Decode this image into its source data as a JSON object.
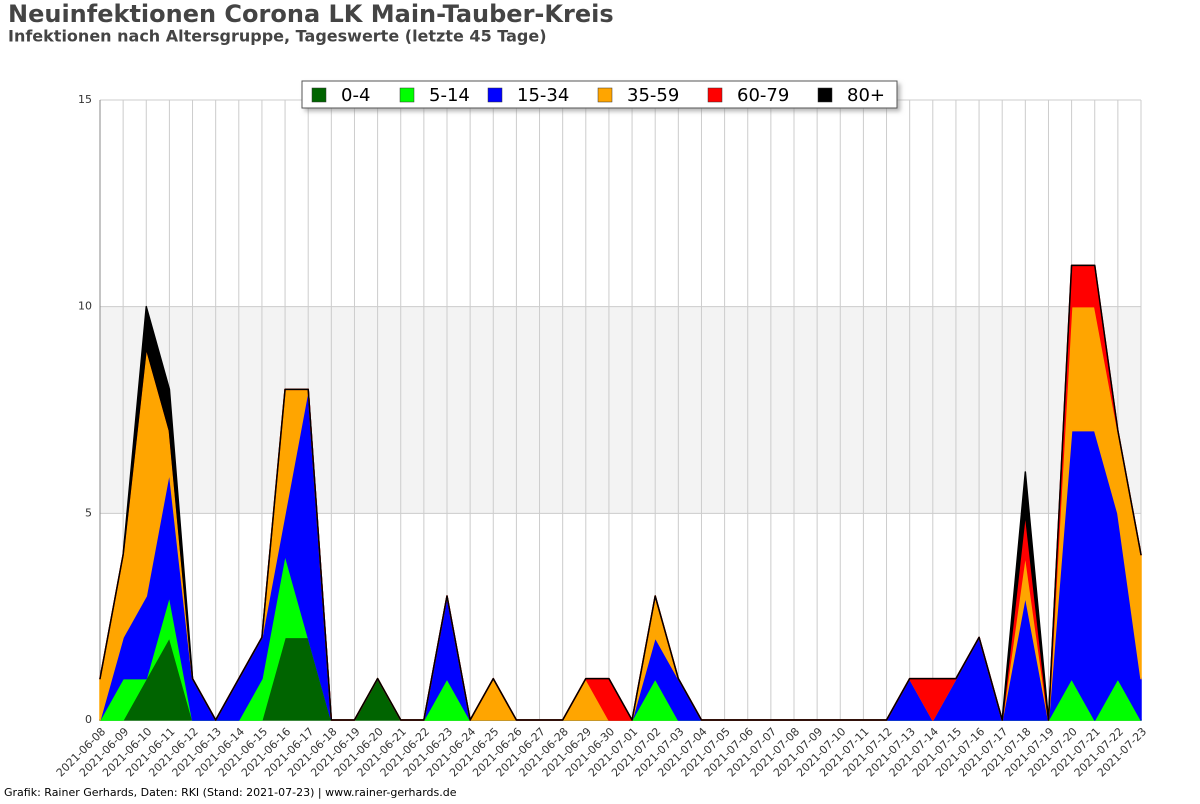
{
  "chart_data": {
    "type": "stacked-area",
    "title": "Neuinfektionen Corona LK Main-Tauber-Kreis",
    "subtitle": "Infektionen nach Altersgruppe, Tageswerte (letzte 45 Tage)",
    "source": "Grafik: Rainer Gerhards, Daten: RKI (Stand: 2021-07-23) | www.rainer-gerhards.de",
    "categories": [
      "2021-06-08",
      "2021-06-09",
      "2021-06-10",
      "2021-06-11",
      "2021-06-12",
      "2021-06-13",
      "2021-06-14",
      "2021-06-15",
      "2021-06-16",
      "2021-06-17",
      "2021-06-18",
      "2021-06-19",
      "2021-06-20",
      "2021-06-21",
      "2021-06-22",
      "2021-06-23",
      "2021-06-24",
      "2021-06-25",
      "2021-06-26",
      "2021-06-27",
      "2021-06-28",
      "2021-06-29",
      "2021-06-30",
      "2021-07-01",
      "2021-07-02",
      "2021-07-03",
      "2021-07-04",
      "2021-07-05",
      "2021-07-06",
      "2021-07-07",
      "2021-07-08",
      "2021-07-09",
      "2021-07-10",
      "2021-07-11",
      "2021-07-12",
      "2021-07-13",
      "2021-07-14",
      "2021-07-15",
      "2021-07-16",
      "2021-07-17",
      "2021-07-18",
      "2021-07-19",
      "2021-07-20",
      "2021-07-21",
      "2021-07-22",
      "2021-07-23"
    ],
    "series": [
      {
        "name": "0-4",
        "color": "#006400",
        "values": [
          0,
          0,
          1,
          2,
          0,
          0,
          0,
          0,
          2,
          2,
          0,
          0,
          1,
          0,
          0,
          0,
          0,
          0,
          0,
          0,
          0,
          0,
          0,
          0,
          0,
          0,
          0,
          0,
          0,
          0,
          0,
          0,
          0,
          0,
          0,
          0,
          0,
          0,
          0,
          0,
          0,
          0,
          0,
          0,
          0,
          0
        ]
      },
      {
        "name": "5-14",
        "color": "#00ff00",
        "values": [
          0,
          1,
          0,
          1,
          0,
          0,
          0,
          1,
          2,
          0,
          0,
          0,
          0,
          0,
          0,
          1,
          0,
          0,
          0,
          0,
          0,
          0,
          0,
          0,
          1,
          0,
          0,
          0,
          0,
          0,
          0,
          0,
          0,
          0,
          0,
          0,
          0,
          0,
          0,
          0,
          0,
          0,
          1,
          0,
          1,
          0
        ]
      },
      {
        "name": "15-34",
        "color": "#0000ff",
        "values": [
          0,
          1,
          2,
          3,
          1,
          0,
          1,
          1,
          1,
          6,
          0,
          0,
          0,
          0,
          0,
          2,
          0,
          0,
          0,
          0,
          0,
          0,
          0,
          0,
          1,
          1,
          0,
          0,
          0,
          0,
          0,
          0,
          0,
          0,
          0,
          1,
          0,
          1,
          2,
          0,
          3,
          0,
          6,
          7,
          4,
          1
        ]
      },
      {
        "name": "35-59",
        "color": "#ffa500",
        "values": [
          1,
          2,
          6,
          1,
          0,
          0,
          0,
          0,
          3,
          0,
          0,
          0,
          0,
          0,
          0,
          0,
          0,
          1,
          0,
          0,
          0,
          1,
          0,
          0,
          1,
          0,
          0,
          0,
          0,
          0,
          0,
          0,
          0,
          0,
          0,
          0,
          0,
          0,
          0,
          0,
          1,
          0,
          3,
          3,
          2,
          3
        ]
      },
      {
        "name": "60-79",
        "color": "#ff0000",
        "values": [
          0,
          0,
          0,
          0,
          0,
          0,
          0,
          0,
          0,
          0,
          0,
          0,
          0,
          0,
          0,
          0,
          0,
          0,
          0,
          0,
          0,
          0,
          1,
          0,
          0,
          0,
          0,
          0,
          0,
          0,
          0,
          0,
          0,
          0,
          0,
          0,
          1,
          0,
          0,
          0,
          1,
          0,
          1,
          1,
          0,
          0
        ]
      },
      {
        "name": "80+",
        "color": "#000000",
        "values": [
          0,
          0,
          1,
          1,
          0,
          0,
          0,
          0,
          0,
          0,
          0,
          0,
          0,
          0,
          0,
          0,
          0,
          0,
          0,
          0,
          0,
          0,
          0,
          0,
          0,
          0,
          0,
          0,
          0,
          0,
          0,
          0,
          0,
          0,
          0,
          0,
          0,
          0,
          0,
          0,
          1,
          0,
          0,
          0,
          0,
          0
        ]
      }
    ],
    "band": [
      5,
      10
    ],
    "ylim": [
      0,
      15
    ],
    "yticks": [
      0,
      5,
      10,
      15
    ],
    "grid": true,
    "legend": "top"
  }
}
